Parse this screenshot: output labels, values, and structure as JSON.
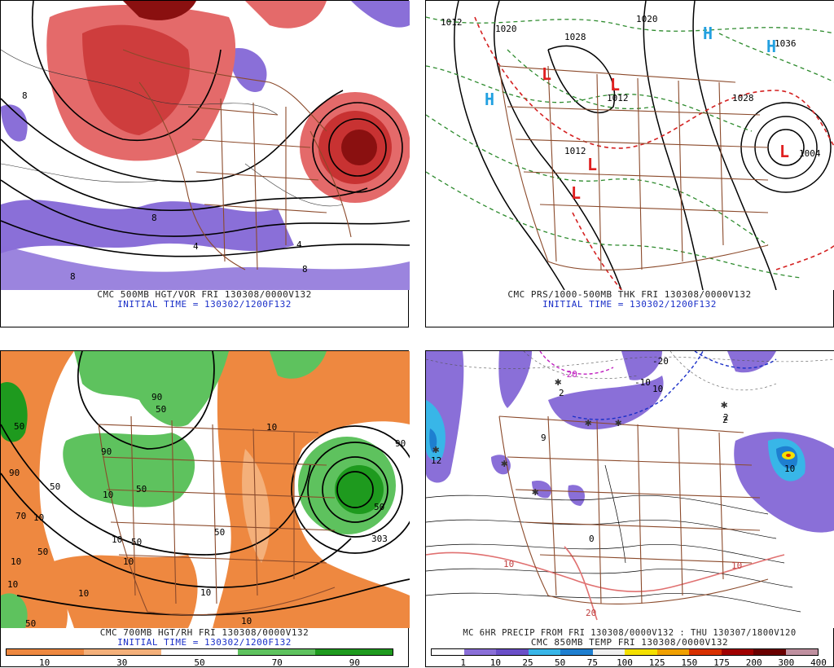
{
  "panels": {
    "tl": {
      "line1": "CMC 500MB HGT/VOR FRI 130308/0000V132",
      "line2": "INITIAL TIME = 130302/1200F132"
    },
    "tr": {
      "line1": "CMC PRS/1000-500MB THK FRI 130308/0000V132",
      "line2": "INITIAL TIME = 130302/1200F132"
    },
    "bl": {
      "line1": "CMC 700MB HGT/RH FRI 130308/0000V132",
      "line2": "INITIAL TIME = 130302/1200F132"
    },
    "br": {
      "line1": "MC 6HR PRECIP FROM FRI 130308/0000V132 : THU 130307/1800V120",
      "line2": "CMC 850MB TEMP FRI 130308/0000V132"
    }
  },
  "map_labels": {
    "tl": [
      "8",
      "8",
      "8",
      "4",
      "8",
      "4"
    ],
    "tr": [
      "1012",
      "1020",
      "1028",
      "1020",
      "1012",
      "1028",
      "1004",
      "1012",
      "1036"
    ],
    "tr_symbols": [
      "H",
      "H",
      "L",
      "L",
      "L",
      "L",
      "L",
      "H"
    ],
    "bl": [
      "50",
      "90",
      "70",
      "50",
      "10",
      "10",
      "50",
      "10",
      "50",
      "90",
      "10",
      "50",
      "10",
      "90",
      "50",
      "10",
      "50",
      "10",
      "50",
      "10",
      "90",
      "50",
      "303",
      "10",
      "10"
    ],
    "br": [
      "12",
      "2",
      "10",
      "2",
      "9",
      "-10",
      "-20",
      "-20",
      "10",
      "0",
      "10",
      "10",
      "20",
      "2"
    ]
  },
  "legend_rh": {
    "colors": [
      "#ee8840",
      "#f4b07a",
      "#ffffff",
      "#5ec25e",
      "#1e9a1e"
    ],
    "ticks": [
      "10",
      "30",
      "50",
      "70",
      "90"
    ]
  },
  "legend_precip": {
    "colors": [
      "#ffffff",
      "#8a6fd8",
      "#6a4fc8",
      "#38b6e8",
      "#1e7fd0",
      "#f0f0f0",
      "#f4e000",
      "#f0a000",
      "#d83000",
      "#a00000",
      "#6a0000",
      "#c090a0"
    ],
    "ticks": [
      "1",
      "10",
      "25",
      "50",
      "75",
      "100",
      "125",
      "150",
      "175",
      "200",
      "300",
      "400"
    ]
  }
}
